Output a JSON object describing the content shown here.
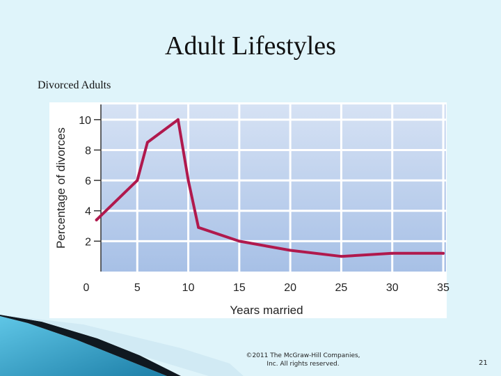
{
  "slide": {
    "title": "Adult Lifestyles",
    "subtitle": "Divorced Adults",
    "copyright": "©2011 The McGraw-Hill Companies, Inc. All rights reserved.",
    "page_number": "21"
  },
  "colors": {
    "background": "#dff4fa",
    "line": "#b0194d",
    "plot_top": "#d6e2f4",
    "plot_bottom": "#a7c0e6",
    "gridline": "#ffffff"
  },
  "chart_data": {
    "type": "line",
    "title": "",
    "xlabel": "Years married",
    "ylabel": "Percentage of divorces",
    "xlim": [
      0,
      37
    ],
    "ylim": [
      0,
      11
    ],
    "x_ticks": [
      0,
      5,
      10,
      15,
      20,
      25,
      30,
      35
    ],
    "y_ticks": [
      2,
      4,
      6,
      8,
      10
    ],
    "grid": true,
    "x": [
      1,
      5,
      6,
      9,
      10,
      11,
      15,
      20,
      25,
      30,
      35
    ],
    "series": [
      {
        "values": [
          3.4,
          6.0,
          8.5,
          10.0,
          6.0,
          2.9,
          2.0,
          1.4,
          1.0,
          1.2,
          1.2
        ]
      }
    ]
  }
}
